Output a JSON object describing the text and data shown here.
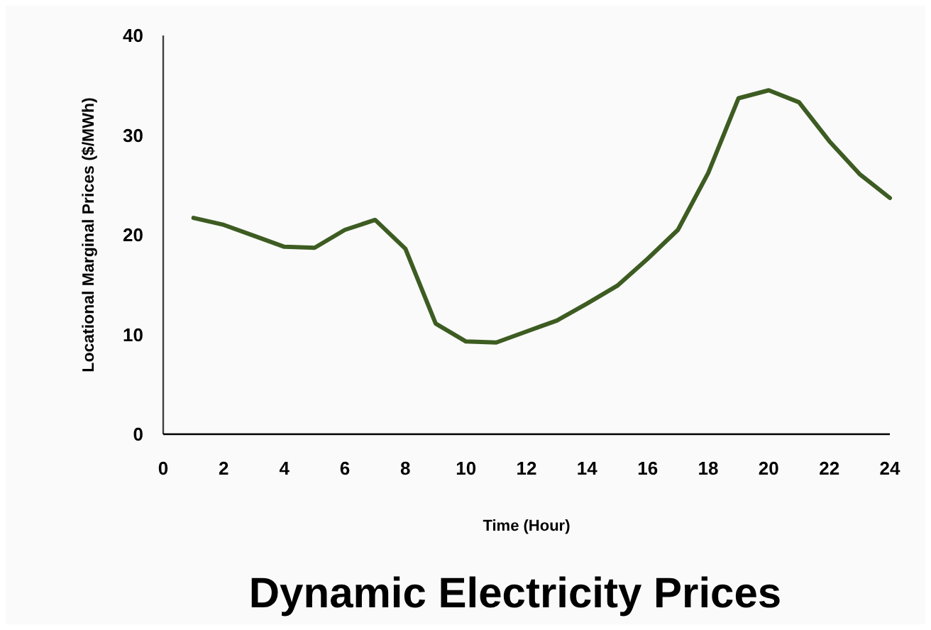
{
  "chart_data": {
    "type": "line",
    "title": "Dynamic Electricity Prices",
    "xlabel": "Time (Hour)",
    "ylabel": "Locational Marginal Prices ($/MWh)",
    "x": [
      1,
      2,
      3,
      4,
      5,
      6,
      7,
      8,
      9,
      10,
      11,
      12,
      13,
      14,
      15,
      16,
      17,
      18,
      19,
      20,
      21,
      22,
      23,
      24
    ],
    "series": [
      {
        "color": "#3d5c22",
        "values": [
          21.7,
          21.0,
          19.9,
          18.8,
          18.7,
          20.5,
          21.5,
          18.6,
          11.1,
          9.3,
          9.2,
          10.3,
          11.4,
          13.1,
          14.9,
          17.6,
          20.5,
          26.2,
          33.7,
          34.5,
          33.3,
          29.4,
          26.1,
          23.7
        ]
      }
    ],
    "xlim": [
      0,
      24
    ],
    "xticks": [
      0,
      2,
      4,
      6,
      8,
      10,
      12,
      14,
      16,
      18,
      20,
      22,
      24
    ],
    "ylim": [
      0,
      40
    ],
    "yticks": [
      0,
      10,
      20,
      30,
      40
    ],
    "grid": false,
    "marker": "none",
    "line_style": "solid"
  }
}
